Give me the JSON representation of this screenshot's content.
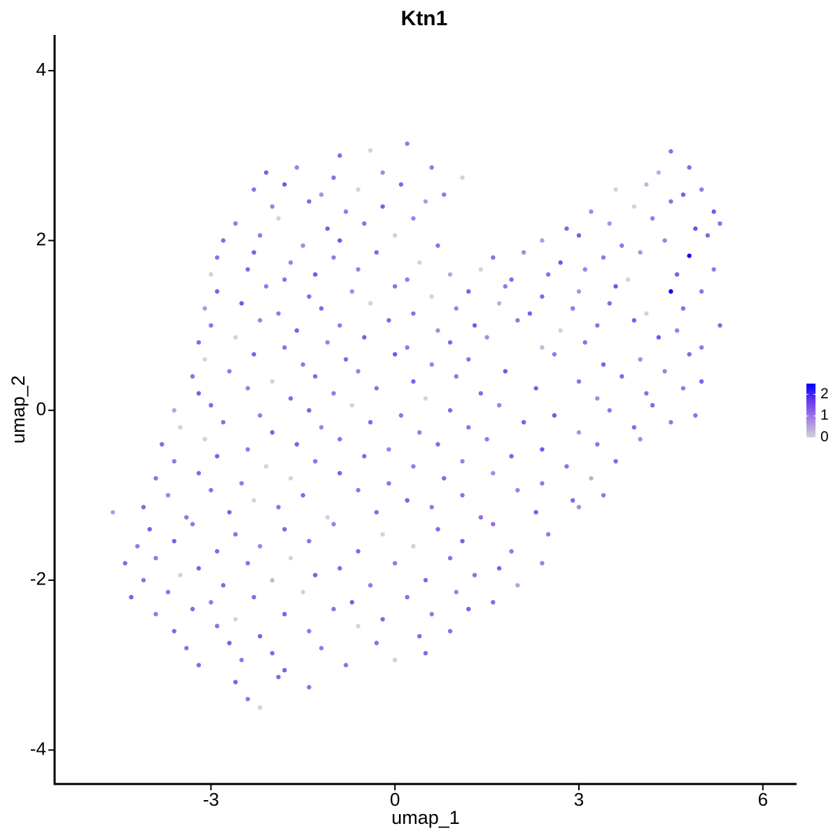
{
  "chart_data": {
    "type": "scatter",
    "title": "Ktn1",
    "x_label": "umap_1",
    "y_label": "umap_2",
    "xlim": [
      -5.55,
      6.55
    ],
    "ylim": [
      -4.4,
      4.42
    ],
    "xticks": [
      -3,
      0,
      3,
      6
    ],
    "yticks": [
      -4,
      -2,
      0,
      2,
      4
    ],
    "clim": [
      0,
      2.5
    ],
    "legend_ticks": [
      0,
      1,
      2
    ],
    "colorscale": [
      "#d3d3d3",
      "#a883e6",
      "#6a3af0",
      "#0000ff"
    ],
    "x": [
      -0.9,
      -0.4,
      0.2,
      4.5,
      -2.1,
      -1.6,
      -1.0,
      -0.2,
      0.6,
      1.1,
      4.3,
      4.8,
      -2.3,
      -1.8,
      -1.2,
      -0.6,
      0.1,
      0.8,
      3.6,
      4.1,
      4.7,
      5.0,
      -2.0,
      -1.4,
      -0.8,
      -0.2,
      0.5,
      3.2,
      3.9,
      4.5,
      5.2,
      -2.6,
      -1.9,
      -1.1,
      -0.5,
      0.3,
      2.8,
      3.5,
      4.2,
      4.9,
      5.3,
      -2.8,
      -2.2,
      -1.5,
      -0.9,
      0.0,
      0.7,
      2.4,
      3.0,
      3.7,
      4.4,
      5.1,
      -2.9,
      -2.3,
      -1.7,
      -1.0,
      -0.3,
      0.4,
      1.6,
      2.1,
      2.7,
      3.4,
      4.0,
      4.8,
      -3.0,
      -2.4,
      -1.8,
      -1.3,
      -0.6,
      0.2,
      0.9,
      1.4,
      1.9,
      2.5,
      3.1,
      3.8,
      4.6,
      5.2,
      -2.9,
      -2.1,
      -1.4,
      -0.7,
      0.0,
      0.6,
      1.2,
      1.8,
      2.4,
      3.0,
      3.6,
      4.5,
      5.0,
      -3.1,
      -2.5,
      -1.9,
      -1.2,
      -0.4,
      0.3,
      1.0,
      1.7,
      2.2,
      2.9,
      3.5,
      4.1,
      4.7,
      -3.0,
      -2.2,
      -1.6,
      -0.9,
      -0.1,
      0.7,
      1.3,
      2.0,
      2.7,
      3.3,
      3.9,
      4.6,
      5.3,
      -3.2,
      -2.6,
      -1.8,
      -1.1,
      -0.5,
      0.2,
      0.9,
      1.5,
      2.4,
      3.1,
      4.3,
      5.0,
      -3.1,
      -2.3,
      -1.5,
      -0.8,
      0.0,
      0.6,
      1.2,
      2.6,
      3.4,
      4.0,
      4.8,
      -3.3,
      -2.7,
      -2.0,
      -1.3,
      -0.6,
      0.3,
      1.0,
      1.8,
      3.0,
      3.7,
      4.4,
      5.0,
      -3.2,
      -2.4,
      -1.7,
      -1.0,
      -0.3,
      0.5,
      1.4,
      2.3,
      3.3,
      4.1,
      4.7,
      -3.6,
      -3.0,
      -2.2,
      -1.4,
      -0.7,
      0.1,
      0.9,
      1.7,
      2.6,
      3.5,
      4.2,
      4.9,
      -3.5,
      -2.8,
      -2.0,
      -1.2,
      -0.4,
      0.4,
      1.2,
      2.1,
      3.0,
      3.9,
      4.5,
      -3.8,
      -3.1,
      -2.4,
      -1.6,
      -0.9,
      -0.1,
      0.7,
      1.5,
      2.4,
      3.3,
      4.0,
      -3.6,
      -2.9,
      -2.1,
      -1.3,
      -0.5,
      0.3,
      1.1,
      1.9,
      2.8,
      3.6,
      -3.9,
      -3.2,
      -2.5,
      -1.7,
      -0.9,
      -0.1,
      0.8,
      1.6,
      2.4,
      3.2,
      -3.7,
      -3.0,
      -2.3,
      -1.5,
      -0.6,
      0.2,
      1.1,
      2.0,
      2.9,
      3.4,
      -4.6,
      -4.1,
      -3.4,
      -2.7,
      -1.9,
      -1.1,
      -0.3,
      0.6,
      1.4,
      2.3,
      3.0,
      -4.0,
      -3.3,
      -2.6,
      -1.8,
      -1.0,
      -0.2,
      0.7,
      1.6,
      2.5,
      -4.2,
      -3.6,
      -2.9,
      -2.2,
      -1.4,
      -0.6,
      0.3,
      1.1,
      1.9,
      -4.4,
      -3.9,
      -3.2,
      -2.4,
      -1.7,
      -0.9,
      0.0,
      0.9,
      1.7,
      2.4,
      -4.1,
      -3.5,
      -2.8,
      -2.0,
      -1.3,
      -0.4,
      0.5,
      1.3,
      2.0,
      -4.3,
      -3.7,
      -3.0,
      -2.3,
      -1.5,
      -0.7,
      0.2,
      1.0,
      1.6,
      -3.9,
      -3.3,
      -2.6,
      -1.8,
      -1.0,
      -0.2,
      0.6,
      1.2,
      -3.6,
      -2.9,
      -2.2,
      -1.4,
      -0.6,
      0.4,
      0.9,
      -3.4,
      -2.7,
      -2.0,
      -1.2,
      -0.3,
      0.5,
      -3.2,
      -2.5,
      -1.8,
      -0.8,
      0.0,
      -2.6,
      -1.9,
      -1.4,
      -2.4,
      -2.2
    ],
    "values": [
      3.0,
      3.06,
      3.14,
      3.05,
      2.8,
      2.86,
      2.74,
      2.8,
      2.86,
      2.74,
      2.8,
      2.86,
      2.6,
      2.66,
      2.54,
      2.6,
      2.66,
      2.54,
      2.6,
      2.66,
      2.54,
      2.6,
      2.4,
      2.46,
      2.34,
      2.4,
      2.46,
      2.34,
      2.4,
      2.46,
      2.34,
      2.2,
      2.26,
      2.14,
      2.2,
      2.26,
      2.14,
      2.2,
      2.26,
      2.14,
      2.2,
      2.0,
      2.06,
      1.94,
      2.0,
      2.06,
      1.94,
      2.0,
      2.06,
      1.94,
      2.0,
      2.06,
      1.8,
      1.86,
      1.74,
      1.8,
      1.86,
      1.74,
      1.8,
      1.86,
      1.74,
      1.8,
      1.86,
      1.82,
      1.6,
      1.66,
      1.54,
      1.6,
      1.66,
      1.54,
      1.6,
      1.66,
      1.54,
      1.6,
      1.66,
      1.54,
      1.6,
      1.66,
      1.4,
      1.46,
      1.34,
      1.4,
      1.46,
      1.34,
      1.4,
      1.46,
      1.34,
      1.4,
      1.46,
      1.4,
      1.4,
      1.2,
      1.26,
      1.14,
      1.2,
      1.26,
      1.14,
      1.2,
      1.26,
      1.14,
      1.2,
      1.26,
      1.14,
      1.2,
      1.0,
      1.06,
      0.94,
      1.0,
      1.06,
      0.94,
      1.0,
      1.06,
      0.94,
      1.0,
      1.06,
      0.94,
      1.0,
      0.8,
      0.86,
      0.74,
      0.8,
      0.86,
      0.74,
      0.8,
      0.86,
      0.74,
      0.8,
      0.86,
      0.74,
      0.6,
      0.66,
      0.54,
      0.6,
      0.66,
      0.54,
      0.6,
      0.66,
      0.54,
      0.6,
      0.66,
      0.4,
      0.46,
      0.34,
      0.4,
      0.46,
      0.34,
      0.4,
      0.46,
      0.34,
      0.4,
      0.46,
      0.34,
      0.2,
      0.26,
      0.14,
      0.2,
      0.26,
      0.14,
      0.2,
      0.26,
      0.14,
      0.2,
      0.26,
      0.0,
      0.06,
      -0.06,
      0.0,
      0.06,
      -0.06,
      0.0,
      0.06,
      -0.06,
      0.0,
      0.06,
      -0.06,
      -0.2,
      -0.14,
      -0.26,
      -0.2,
      -0.14,
      -0.26,
      -0.2,
      -0.14,
      -0.26,
      -0.2,
      -0.14,
      -0.4,
      -0.34,
      -0.46,
      -0.4,
      -0.34,
      -0.46,
      -0.4,
      -0.34,
      -0.46,
      -0.4,
      -0.34,
      -0.6,
      -0.54,
      -0.66,
      -0.6,
      -0.54,
      -0.66,
      -0.6,
      -0.54,
      -0.66,
      -0.6,
      -0.8,
      -0.74,
      -0.86,
      -0.8,
      -0.74,
      -0.86,
      -0.8,
      -0.74,
      -0.86,
      -0.8,
      -1.0,
      -0.94,
      -1.06,
      -1.0,
      -0.94,
      -1.06,
      -1.0,
      -0.94,
      -1.06,
      -1.0,
      -1.2,
      -1.14,
      -1.26,
      -1.2,
      -1.14,
      -1.26,
      -1.2,
      -1.14,
      -1.26,
      -1.2,
      -1.14,
      -1.4,
      -1.34,
      -1.46,
      -1.4,
      -1.34,
      -1.46,
      -1.4,
      -1.34,
      -1.46,
      -1.6,
      -1.54,
      -1.66,
      -1.6,
      -1.54,
      -1.66,
      -1.6,
      -1.54,
      -1.66,
      -1.8,
      -1.74,
      -1.86,
      -1.8,
      -1.74,
      -1.86,
      -1.8,
      -1.74,
      -1.86,
      -1.8,
      -2.0,
      -1.94,
      -2.06,
      -2.0,
      -1.94,
      -2.06,
      -2.0,
      -1.94,
      -2.06,
      -2.2,
      -2.14,
      -2.26,
      -2.2,
      -2.14,
      -2.26,
      -2.2,
      -2.14,
      -2.26,
      -2.4,
      -2.34,
      -2.46,
      -2.4,
      -2.34,
      -2.46,
      -2.4,
      -2.34,
      -2.6,
      -2.54,
      -2.66,
      -2.6,
      -2.54,
      -2.66,
      -2.6,
      -2.8,
      -2.74,
      -2.86,
      -2.8,
      -2.74,
      -2.86,
      -3.0,
      -2.94,
      -3.06,
      -3.0,
      -2.94,
      -3.2,
      -3.14,
      -3.26,
      -3.4,
      -3.5
    ],
    "expression": [
      1.2,
      0,
      1.0,
      1.1,
      1.3,
      0.9,
      1.1,
      0.8,
      1.0,
      0,
      0.4,
      1.2,
      1.1,
      1.4,
      0.7,
      0,
      1.2,
      1.0,
      0,
      0.3,
      1.3,
      1.0,
      0.9,
      1.2,
      1.0,
      1.3,
      0.6,
      0.8,
      0,
      1.1,
      1.4,
      1.0,
      0,
      1.3,
      1.1,
      0.9,
      1.2,
      0.7,
      1.0,
      1.5,
      1.1,
      1.2,
      1.0,
      0.8,
      1.4,
      0,
      1.1,
      0.6,
      1.3,
      1.0,
      0.9,
      1.2,
      1.1,
      1.3,
      0.9,
      1.0,
      1.2,
      0,
      1.1,
      0.8,
      1.4,
      1.0,
      0.7,
      2.4,
      0,
      1.2,
      1.1,
      1.4,
      0.9,
      1.0,
      0.5,
      0,
      1.2,
      1.1,
      0.9,
      0,
      1.3,
      1.0,
      1.3,
      1.0,
      1.2,
      0.8,
      1.1,
      0,
      1.3,
      1.0,
      1.2,
      0.7,
      1.4,
      2.5,
      1.1,
      0.6,
      1.4,
      1.0,
      1.2,
      0,
      1.1,
      0.9,
      0.4,
      1.3,
      1.0,
      1.2,
      0,
      1.1,
      1.1,
      0.9,
      1.3,
      1.0,
      1.2,
      0.8,
      1.4,
      1.0,
      0,
      1.1,
      1.3,
      0.9,
      1.2,
      1.2,
      0,
      1.1,
      0.9,
      1.3,
      1.0,
      1.2,
      0.8,
      0.3,
      1.1,
      1.4,
      1.0,
      0,
      1.3,
      1.0,
      1.2,
      1.4,
      0.9,
      1.1,
      1.0,
      1.3,
      0.8,
      1.2,
      1.1,
      1.0,
      0,
      1.2,
      0.9,
      1.3,
      1.0,
      1.4,
      1.1,
      1.2,
      0.9,
      1.3,
      1.3,
      0.9,
      1.2,
      1.0,
      1.1,
      0,
      1.2,
      1.3,
      0.8,
      1.1,
      1.0,
      0.5,
      1.2,
      1.0,
      1.3,
      0,
      1.1,
      1.2,
      0.9,
      1.4,
      1.0,
      1.2,
      1.1,
      0,
      1.1,
      1.3,
      0.9,
      1.2,
      1.0,
      1.1,
      1.3,
      0.7,
      1.2,
      1.0,
      1.2,
      0,
      1.0,
      1.3,
      1.1,
      0.9,
      1.2,
      1.0,
      1.4,
      1.1,
      0.8,
      1.0,
      1.3,
      0,
      1.1,
      1.2,
      1.0,
      0.9,
      1.3,
      1.1,
      1.2,
      1.1,
      1.2,
      1.0,
      0,
      1.3,
      1.1,
      1.2,
      0.8,
      1.0,
      0.4,
      0.9,
      1.1,
      0,
      1.2,
      1.0,
      1.3,
      1.1,
      0.9,
      1.2,
      1.0,
      0.6,
      1.2,
      1.0,
      1.3,
      1.1,
      0,
      1.2,
      1.0,
      1.1,
      1.3,
      0.8,
      1.3,
      1.0,
      1.1,
      1.2,
      0.9,
      0,
      1.2,
      1.1,
      1.0,
      1.0,
      1.3,
      1.2,
      0.9,
      1.1,
      1.2,
      0,
      1.3,
      1.0,
      1.2,
      1.0,
      1.3,
      1.1,
      0,
      1.2,
      1.0,
      1.1,
      1.3,
      0.9,
      1.1,
      0,
      1.2,
      0.3,
      1.3,
      1.0,
      1.2,
      1.1,
      0.5,
      1.3,
      1.1,
      1.0,
      1.2,
      0,
      1.3,
      1.1,
      0.9,
      1.2,
      1.0,
      1.2,
      0,
      1.3,
      1.1,
      1.2,
      1.0,
      1.3,
      1.2,
      1.1,
      1.3,
      1.0,
      0,
      1.2,
      1.1,
      1.1,
      1.3,
      1.2,
      1.0,
      1.1,
      1.2,
      1.2,
      1.0,
      1.3,
      1.1,
      0,
      1.3,
      1.2,
      1.1,
      1.0,
      0
    ]
  }
}
